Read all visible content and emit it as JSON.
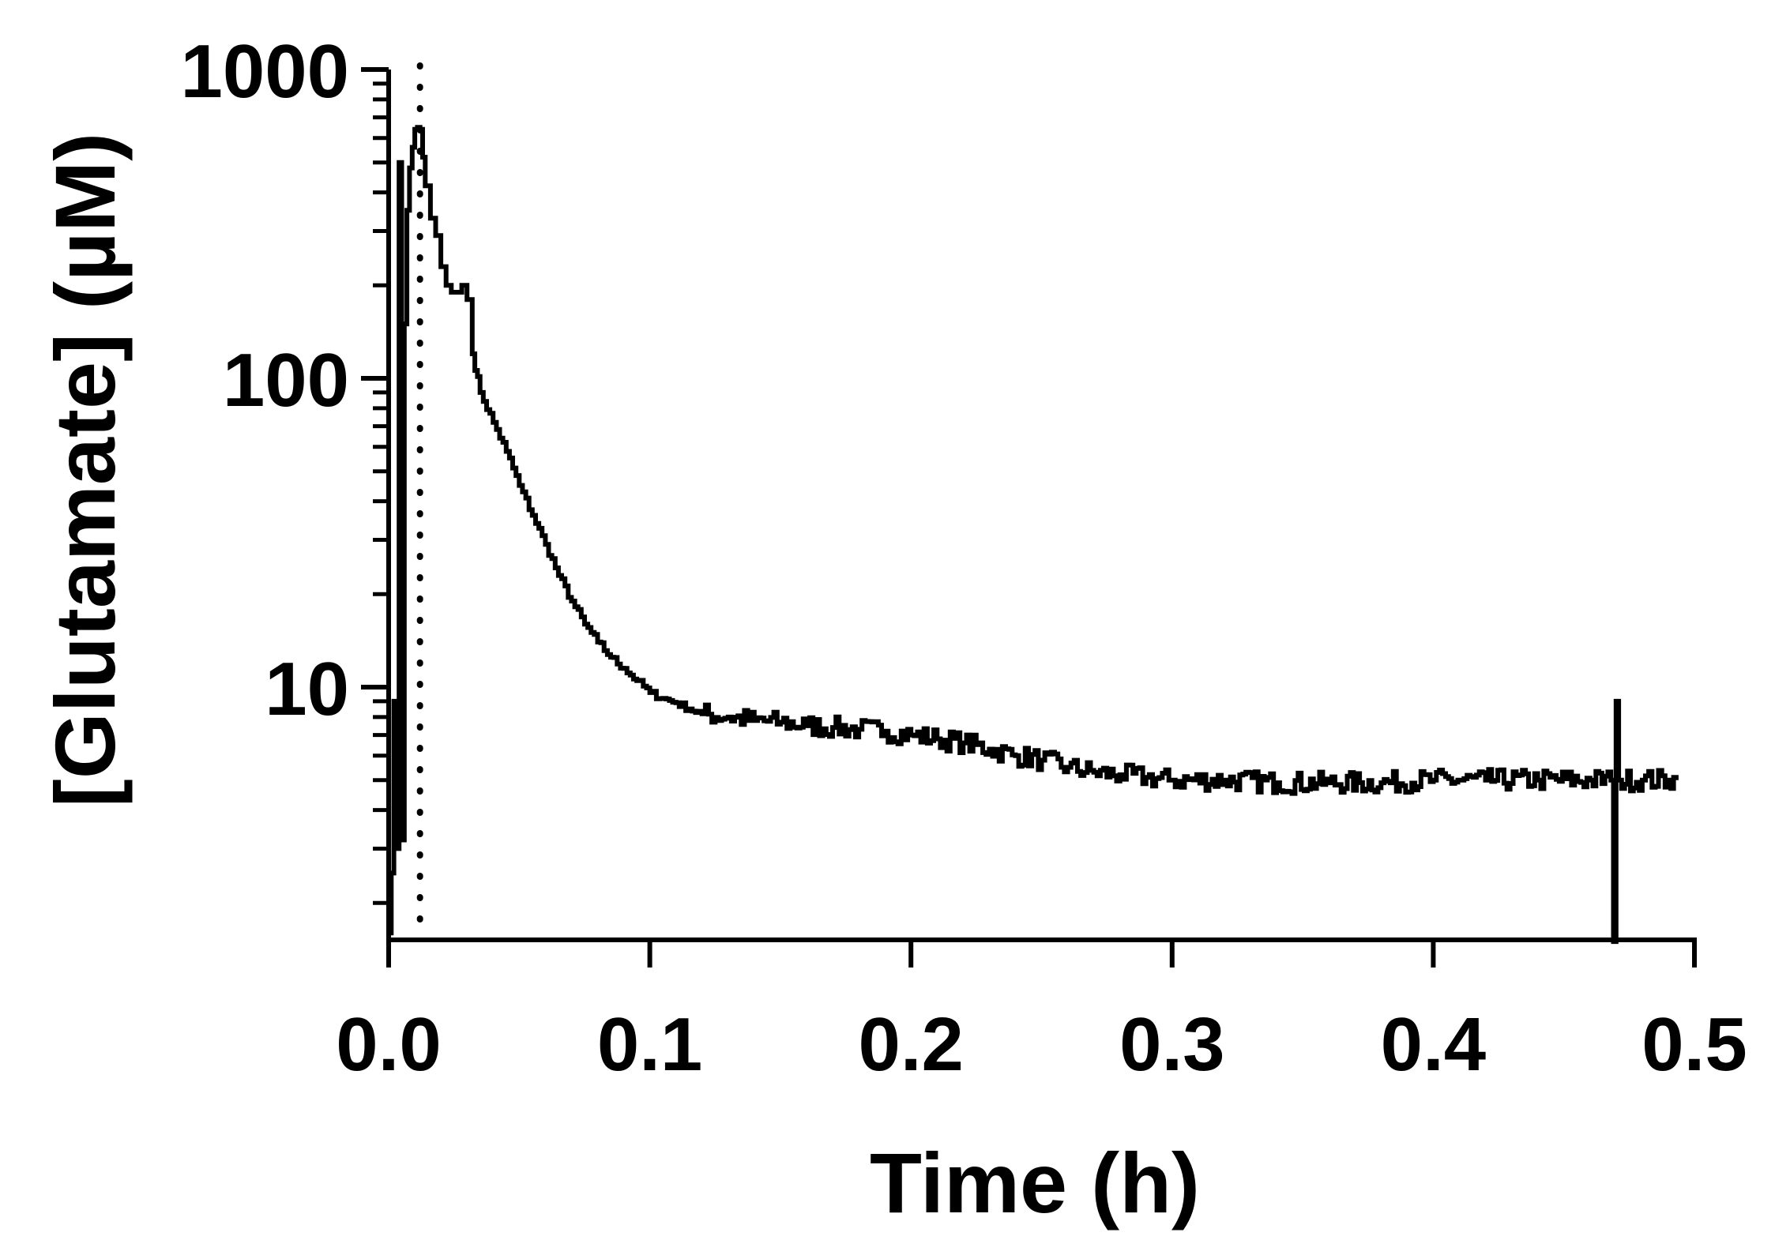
{
  "chart_data": {
    "type": "line",
    "xlabel": "Time (h)",
    "ylabel": "[Glutamate] (µM)",
    "x_scale": "linear",
    "y_scale": "log",
    "xlim": [
      0.0,
      0.5
    ],
    "ylim": [
      1.5,
      1000
    ],
    "x_ticks": [
      "0.0",
      "0.1",
      "0.2",
      "0.3",
      "0.4",
      "0.5"
    ],
    "y_ticks": [
      "10",
      "100",
      "1000"
    ],
    "grid": false,
    "legend": "none",
    "line_color": "#000000",
    "dotted_marker_x": 0.012,
    "series": [
      {
        "x": [
          0.0,
          0.001,
          0.002,
          0.003,
          0.004,
          0.005,
          0.006,
          0.007,
          0.008,
          0.009,
          0.01,
          0.011,
          0.012,
          0.013,
          0.014,
          0.016,
          0.018,
          0.02,
          0.022,
          0.024,
          0.026,
          0.028,
          0.03,
          0.032,
          0.035,
          0.04,
          0.045,
          0.05,
          0.055,
          0.06,
          0.065,
          0.07,
          0.075,
          0.08,
          0.085,
          0.09,
          0.095,
          0.1,
          0.105,
          0.11,
          0.115,
          0.12,
          0.13,
          0.14,
          0.15,
          0.16,
          0.17,
          0.18,
          0.19,
          0.2,
          0.21,
          0.22,
          0.23,
          0.24,
          0.25,
          0.26,
          0.27,
          0.28,
          0.29,
          0.3,
          0.32,
          0.34,
          0.36,
          0.38,
          0.4,
          0.42,
          0.44,
          0.46,
          0.468,
          0.469,
          0.47,
          0.471,
          0.48,
          0.49,
          0.493
        ],
        "y": [
          1.6,
          2.5,
          9.0,
          3.0,
          500,
          3.2,
          150,
          350,
          480,
          560,
          640,
          650,
          640,
          520,
          420,
          330,
          290,
          230,
          200,
          190,
          190,
          200,
          180,
          120,
          90,
          72,
          58,
          45,
          36,
          29,
          23,
          19,
          16,
          14,
          12.5,
          11.5,
          10.5,
          9.6,
          9.2,
          8.9,
          8.5,
          8.2,
          8.0,
          7.8,
          7.7,
          7.5,
          7.4,
          7.3,
          7.2,
          7.0,
          6.8,
          6.6,
          6.3,
          6.0,
          5.8,
          5.5,
          5.3,
          5.2,
          5.1,
          5.0,
          5.0,
          4.9,
          4.9,
          4.9,
          5.0,
          5.0,
          5.0,
          5.0,
          5.0,
          1.5,
          9.0,
          5.0,
          5.0,
          5.0,
          5.0
        ]
      }
    ]
  }
}
